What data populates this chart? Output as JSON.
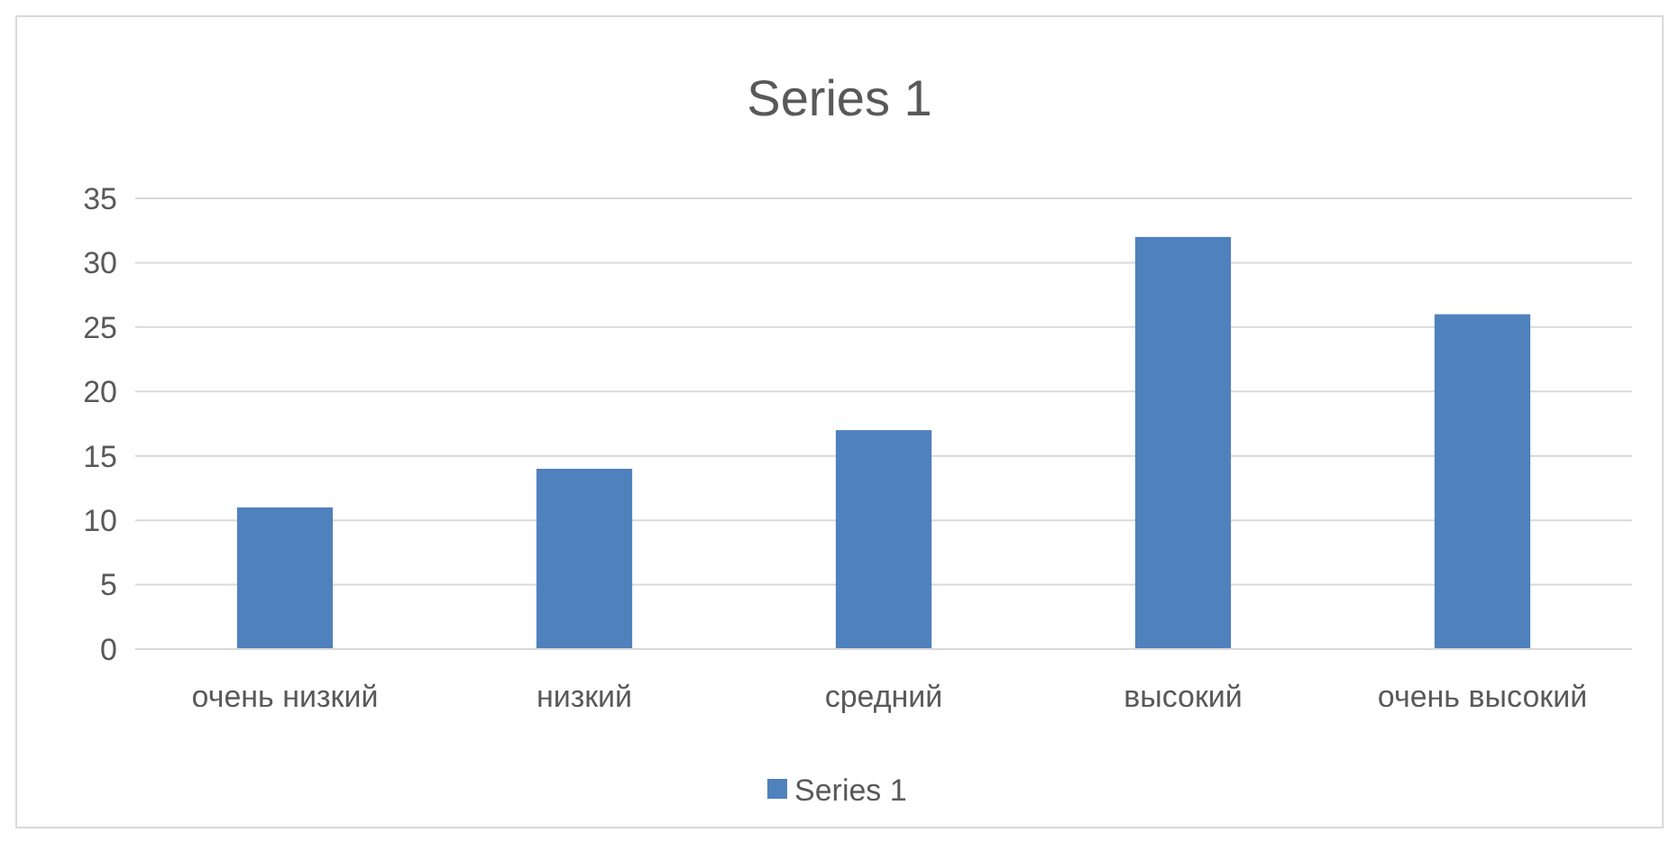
{
  "chart_data": {
    "type": "bar",
    "title": "Series 1",
    "categories": [
      "очень низкий",
      "низкий",
      "средний",
      "высокий",
      "очень высокий"
    ],
    "series": [
      {
        "name": "Series 1",
        "color": "#4f81bd",
        "values": [
          11,
          14,
          17,
          32,
          26
        ]
      }
    ],
    "ylim": [
      0,
      35
    ],
    "yticks": [
      0,
      5,
      10,
      15,
      20,
      25,
      30,
      35
    ],
    "grid": "y",
    "legend": "bottom"
  }
}
